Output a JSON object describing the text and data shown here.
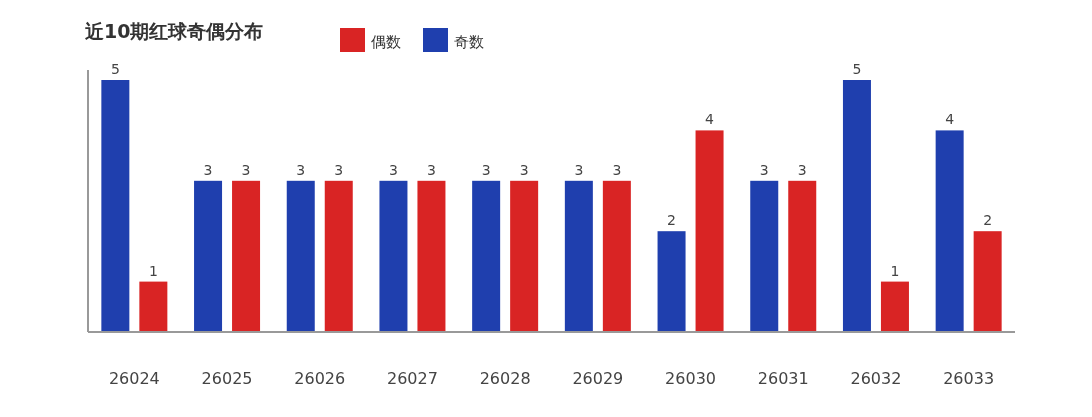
{
  "chart_data": {
    "type": "bar",
    "title": "近10期红球奇偶分布",
    "categories": [
      "26024",
      "26025",
      "26026",
      "26027",
      "26028",
      "26029",
      "26030",
      "26031",
      "26032",
      "26033"
    ],
    "series": [
      {
        "name": "奇数",
        "color": "#1f3fae",
        "values": [
          5,
          3,
          3,
          3,
          3,
          3,
          2,
          3,
          5,
          4
        ]
      },
      {
        "name": "偶数",
        "color": "#d92424",
        "values": [
          1,
          3,
          3,
          3,
          3,
          3,
          4,
          3,
          1,
          2
        ]
      }
    ],
    "data_labels": true,
    "legend": "top"
  }
}
